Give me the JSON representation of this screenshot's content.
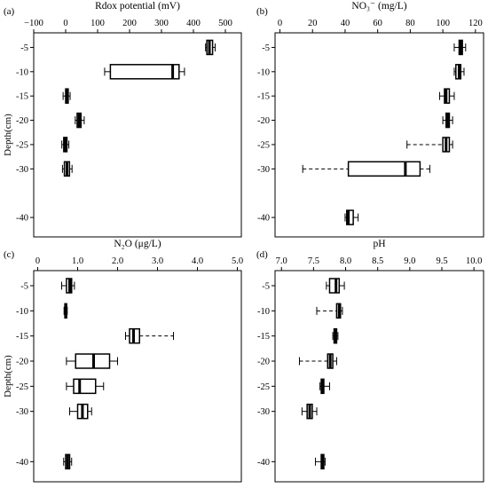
{
  "chart_data": [
    {
      "panel_label": "(a)",
      "type": "boxplot",
      "orientation": "horizontal",
      "title": "Rdox potential (mV)",
      "xlabel_position": "top",
      "ylabel": "Depth(cm)",
      "xlim": [
        -100,
        550
      ],
      "xticks": [
        -100,
        0,
        100,
        200,
        300,
        400,
        500
      ],
      "xtick_labels": [
        "−100",
        "0",
        "100",
        "200",
        "300",
        "400",
        "500"
      ],
      "ylim": [
        -44,
        -2
      ],
      "yticks": [
        -5,
        -10,
        -15,
        -20,
        -25,
        -30,
        -40
      ],
      "ytick_labels": [
        "-5",
        "-10",
        "-15",
        "-20",
        "-25",
        "-30",
        "-40"
      ],
      "boxes": [
        {
          "depth": -5,
          "lo": 438,
          "q1": 442,
          "med": 450,
          "q3": 460,
          "hi": 468,
          "dashed": false
        },
        {
          "depth": -10,
          "lo": 122,
          "q1": 140,
          "med": 335,
          "q3": 355,
          "hi": 372,
          "dashed": false
        },
        {
          "depth": -15,
          "lo": -8,
          "q1": 0,
          "med": 4,
          "q3": 8,
          "hi": 14,
          "dashed": false
        },
        {
          "depth": -20,
          "lo": 30,
          "q1": 36,
          "med": 42,
          "q3": 48,
          "hi": 58,
          "dashed": false
        },
        {
          "depth": -25,
          "lo": -12,
          "q1": -6,
          "med": 0,
          "q3": 4,
          "hi": 10,
          "dashed": false
        },
        {
          "depth": -30,
          "lo": -10,
          "q1": -4,
          "med": 4,
          "q3": 12,
          "hi": 20,
          "dashed": false
        }
      ]
    },
    {
      "panel_label": "(b)",
      "type": "boxplot",
      "orientation": "horizontal",
      "title": "NO₃⁻ (mg/L)",
      "xlabel_position": "top",
      "ylabel": "",
      "xlim": [
        -3,
        125
      ],
      "xticks": [
        0,
        20,
        40,
        60,
        80,
        100,
        120
      ],
      "xtick_labels": [
        "0",
        "20",
        "40",
        "60",
        "80",
        "100",
        "120"
      ],
      "ylim": [
        -44,
        -2
      ],
      "yticks": [
        -5,
        -10,
        -15,
        -20,
        -25,
        -30,
        -40
      ],
      "ytick_labels": [
        "-5",
        "-10",
        "-15",
        "-20",
        "-25",
        "-30",
        "-40"
      ],
      "boxes": [
        {
          "depth": -5,
          "lo": 107,
          "q1": 110,
          "med": 111,
          "q3": 112,
          "hi": 114,
          "dashed": false
        },
        {
          "depth": -10,
          "lo": 107,
          "q1": 108,
          "med": 110,
          "q3": 111,
          "hi": 113,
          "dashed": false
        },
        {
          "depth": -15,
          "lo": 98,
          "q1": 101,
          "med": 102,
          "q3": 104,
          "hi": 107,
          "dashed": false
        },
        {
          "depth": -20,
          "lo": 100,
          "q1": 102,
          "med": 103,
          "q3": 104,
          "hi": 106,
          "dashed": false
        },
        {
          "depth": -25,
          "lo": 78,
          "q1": 100,
          "med": 102,
          "q3": 104,
          "hi": 106,
          "dashed": true
        },
        {
          "depth": -30,
          "lo": 14,
          "q1": 42,
          "med": 77,
          "q3": 86,
          "hi": 92,
          "dashed": true
        },
        {
          "depth": -40,
          "lo": 40,
          "q1": 41,
          "med": 42,
          "q3": 45,
          "hi": 48,
          "dashed": false
        }
      ]
    },
    {
      "panel_label": "(c)",
      "type": "boxplot",
      "orientation": "horizontal",
      "title": "N₂O  (μg/L)",
      "xlabel_position": "top",
      "ylabel": "Depth(cm)",
      "xlim": [
        -0.1,
        5.1
      ],
      "xticks": [
        0,
        1.0,
        2.0,
        3.0,
        4.0,
        5.0
      ],
      "xtick_labels": [
        "0",
        "1.0",
        "2.0",
        "3.0",
        "4.0",
        "5.0"
      ],
      "ylim": [
        -44,
        -2
      ],
      "yticks": [
        -5,
        -10,
        -15,
        -20,
        -25,
        -30,
        -40
      ],
      "ytick_labels": [
        "-5",
        "-10",
        "-15",
        "-20",
        "-25",
        "-30",
        "-40"
      ],
      "boxes": [
        {
          "depth": -5,
          "lo": 0.6,
          "q1": 0.72,
          "med": 0.8,
          "q3": 0.85,
          "hi": 0.92,
          "dashed": false
        },
        {
          "depth": -10,
          "lo": 0.66,
          "q1": 0.68,
          "med": 0.7,
          "q3": 0.72,
          "hi": 0.74,
          "dashed": false
        },
        {
          "depth": -15,
          "lo": 2.2,
          "q1": 2.3,
          "med": 2.4,
          "q3": 2.55,
          "hi": 3.4,
          "dashed": true
        },
        {
          "depth": -20,
          "lo": 0.72,
          "q1": 0.95,
          "med": 1.4,
          "q3": 1.8,
          "hi": 2.0,
          "dashed": false
        },
        {
          "depth": -25,
          "lo": 0.72,
          "q1": 0.9,
          "med": 1.05,
          "q3": 1.45,
          "hi": 1.65,
          "dashed": false
        },
        {
          "depth": -30,
          "lo": 0.8,
          "q1": 1.0,
          "med": 1.12,
          "q3": 1.25,
          "hi": 1.35,
          "dashed": false
        },
        {
          "depth": -40,
          "lo": 0.65,
          "q1": 0.7,
          "med": 0.75,
          "q3": 0.8,
          "hi": 0.85,
          "dashed": false
        }
      ]
    },
    {
      "panel_label": "(d)",
      "type": "boxplot",
      "orientation": "horizontal",
      "title": "pH",
      "xlabel_position": "top",
      "ylabel": "",
      "xlim": [
        6.9,
        10.15
      ],
      "xticks": [
        7.0,
        7.5,
        8.0,
        8.5,
        9.0,
        9.5,
        10.0
      ],
      "xtick_labels": [
        "7.0",
        "7.5",
        "8.0",
        "8.5",
        "9.0",
        "9.5",
        "10.0"
      ],
      "ylim": [
        -44,
        -2
      ],
      "yticks": [
        -5,
        -10,
        -15,
        -20,
        -25,
        -30,
        -40
      ],
      "ytick_labels": [
        "-5",
        "-10",
        "-15",
        "-20",
        "-25",
        "-30",
        "-40"
      ],
      "boxes": [
        {
          "depth": -5,
          "lo": 7.7,
          "q1": 7.75,
          "med": 7.85,
          "q3": 7.9,
          "hi": 7.98,
          "dashed": false
        },
        {
          "depth": -10,
          "lo": 7.55,
          "q1": 7.86,
          "med": 7.9,
          "q3": 7.92,
          "hi": 7.95,
          "dashed": true
        },
        {
          "depth": -15,
          "lo": 7.8,
          "q1": 7.82,
          "med": 7.84,
          "q3": 7.86,
          "hi": 7.88,
          "dashed": false
        },
        {
          "depth": -20,
          "lo": 7.28,
          "q1": 7.72,
          "med": 7.76,
          "q3": 7.8,
          "hi": 7.86,
          "dashed": true
        },
        {
          "depth": -25,
          "lo": 7.6,
          "q1": 7.62,
          "med": 7.64,
          "q3": 7.66,
          "hi": 7.75,
          "dashed": false
        },
        {
          "depth": -30,
          "lo": 7.32,
          "q1": 7.4,
          "med": 7.44,
          "q3": 7.48,
          "hi": 7.55,
          "dashed": false
        },
        {
          "depth": -40,
          "lo": 7.53,
          "q1": 7.62,
          "med": 7.64,
          "q3": 7.66,
          "hi": 7.68,
          "dashed": false
        }
      ]
    }
  ]
}
